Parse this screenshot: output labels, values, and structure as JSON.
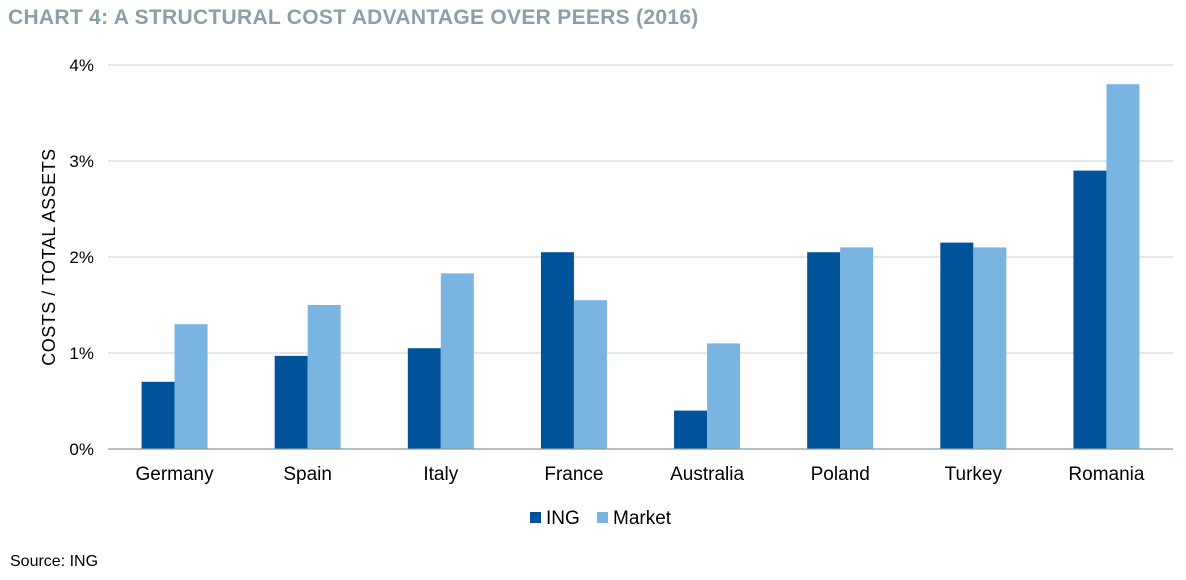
{
  "title": "CHART 4:  A STRUCTURAL COST ADVANTAGE OVER PEERS (2016)",
  "source": "Source: ING",
  "chart_data": {
    "type": "bar",
    "ylabel": "COSTS / TOTAL ASSETS",
    "xlabel": "",
    "ylim": [
      0,
      4
    ],
    "yticks": [
      {
        "value": 0,
        "label": "0%"
      },
      {
        "value": 1,
        "label": "1%"
      },
      {
        "value": 2,
        "label": "2%"
      },
      {
        "value": 3,
        "label": "3%"
      },
      {
        "value": 4,
        "label": "4%"
      }
    ],
    "grid": true,
    "legend_position": "bottom",
    "categories": [
      "Germany",
      "Spain",
      "Italy",
      "France",
      "Australia",
      "Poland",
      "Turkey",
      "Romania"
    ],
    "series": [
      {
        "name": "ING",
        "color": "#00529b",
        "values": [
          0.7,
          0.97,
          1.05,
          2.05,
          0.4,
          2.05,
          2.15,
          2.9
        ]
      },
      {
        "name": "Market",
        "color": "#7ab5e1",
        "values": [
          1.3,
          1.5,
          1.83,
          1.55,
          1.1,
          2.1,
          2.1,
          3.8
        ]
      }
    ]
  }
}
